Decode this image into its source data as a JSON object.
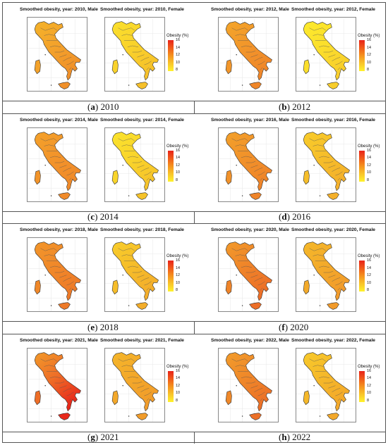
{
  "legend": {
    "title": "Obesity (%)",
    "ticks": [
      "16",
      "14",
      "12",
      "10",
      "8"
    ],
    "gradient": [
      "#e8231a",
      "#f05a1a",
      "#f5931e",
      "#f9c52a",
      "#fff22c"
    ]
  },
  "panels": [
    {
      "caption_letter": "a",
      "caption_year": "2010",
      "male_title": "Smoothed obesity, year: 2010, Male",
      "female_title": "Smoothed obesity, year: 2010, Female",
      "male_colors": [
        "#f5b32a",
        "#f3a22b",
        "#f0902a"
      ],
      "female_colors": [
        "#fbe02c",
        "#f9d22b",
        "#f6c02a"
      ]
    },
    {
      "caption_letter": "b",
      "caption_year": "2012",
      "male_title": "Smoothed obesity, year: 2012, Male",
      "female_title": "Smoothed obesity, year: 2012, Female",
      "male_colors": [
        "#f4a62a",
        "#f2962a",
        "#ef8629"
      ],
      "female_colors": [
        "#fcea2d",
        "#fbdf2c",
        "#f8cd2b"
      ]
    },
    {
      "caption_letter": "c",
      "caption_year": "2014",
      "male_title": "Smoothed obesity, year: 2014, Male",
      "female_title": "Smoothed obesity, year: 2014, Female",
      "male_colors": [
        "#f4a22a",
        "#f2942a",
        "#f08a29"
      ],
      "female_colors": [
        "#fbe32c",
        "#f9d52b",
        "#f6c32a"
      ]
    },
    {
      "caption_letter": "d",
      "caption_year": "2016",
      "male_title": "Smoothed obesity, year: 2016, Male",
      "female_title": "Smoothed obesity, year: 2016, Female",
      "male_colors": [
        "#f3a02a",
        "#f1922a",
        "#ef8429"
      ],
      "female_colors": [
        "#f8cc2b",
        "#f6be2a",
        "#f4b02a"
      ]
    },
    {
      "caption_letter": "e",
      "caption_year": "2018",
      "male_title": "Smoothed obesity, year: 2018, Male",
      "female_title": "Smoothed obesity, year: 2018, Female",
      "male_colors": [
        "#f2962a",
        "#f08829",
        "#ee7a28"
      ],
      "female_colors": [
        "#f8cd2b",
        "#f6bd2a",
        "#f3ad2a"
      ]
    },
    {
      "caption_letter": "f",
      "caption_year": "2020",
      "male_title": "Smoothed obesity, year: 2020, Male",
      "female_title": "Smoothed obesity, year: 2020, Female",
      "male_colors": [
        "#f29a2a",
        "#ef8429",
        "#ec6e27"
      ],
      "female_colors": [
        "#f5b82a",
        "#f3aa2a",
        "#f19a2a"
      ]
    },
    {
      "caption_letter": "g",
      "caption_year": "2021",
      "male_title": "Smoothed obesity, year: 2021, Male",
      "female_title": "Smoothed obesity, year: 2021, Female",
      "male_colors": [
        "#f29a2a",
        "#ee6e27",
        "#e8281b"
      ],
      "female_colors": [
        "#f5b62a",
        "#f3a82a",
        "#f19c2a"
      ]
    },
    {
      "caption_letter": "h",
      "caption_year": "2022",
      "male_title": "Smoothed obesity, year: 2022, Male",
      "female_title": "Smoothed obesity, year: 2022, Female",
      "male_colors": [
        "#f29c2a",
        "#ef8829",
        "#ec7028"
      ],
      "female_colors": [
        "#f8ca2b",
        "#f5b82a",
        "#f3a82a"
      ]
    }
  ]
}
